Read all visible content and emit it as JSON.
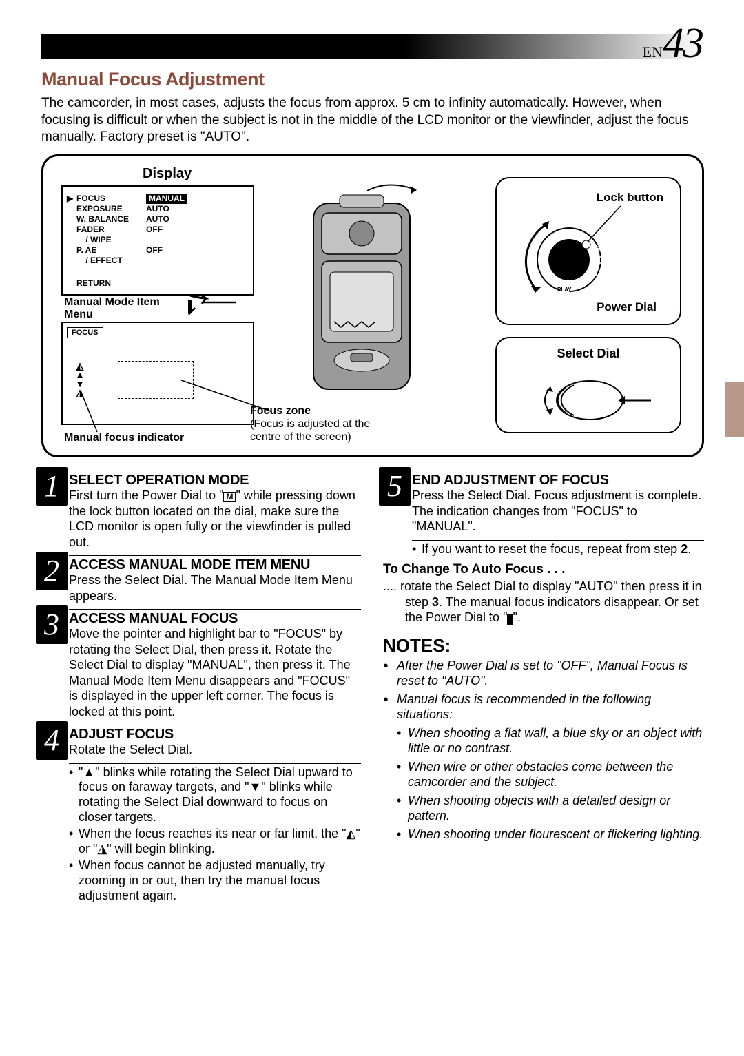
{
  "page": {
    "prefix": "EN",
    "number": "43"
  },
  "title": "Manual Focus Adjustment",
  "intro": "The camcorder, in most cases, adjusts the focus from approx. 5 cm to infinity automatically. However, when focusing is difficult or when the subject is not in the middle of the LCD monitor or the viewfinder, adjust the focus manually. Factory preset is \"AUTO\".",
  "diagram": {
    "display_label": "Display",
    "menu": {
      "items": [
        {
          "label": "FOCUS",
          "value": "MANUAL",
          "pointer": true,
          "highlight": true
        },
        {
          "label": "EXPOSURE",
          "value": "AUTO"
        },
        {
          "label": "W. BALANCE",
          "value": "AUTO"
        },
        {
          "label": "FADER\n    / WIPE",
          "value": "OFF"
        },
        {
          "label": "P. AE\n    / EFFECT",
          "value": "OFF"
        }
      ],
      "return": "RETURN"
    },
    "item_menu_label": "Manual Mode Item\nMenu",
    "focus_screen_label": "FOCUS",
    "indicator_symbols": [
      "◭",
      "▲",
      "▼",
      "◮"
    ],
    "manual_focus_indicator": "Manual focus indicator",
    "focus_zone_title": "Focus zone",
    "focus_zone_text": "(Focus is adjusted at the\ncentre of the screen)",
    "lock_button": "Lock button",
    "power_dial": "Power Dial",
    "select_dial": "Select Dial"
  },
  "steps_left": [
    {
      "num": "1",
      "title": "SELECT OPERATION MODE",
      "body": "First turn the Power Dial to \"M\" while pressing down the lock button located on the dial, make sure the LCD monitor is open fully or the viewfinder is pulled out."
    },
    {
      "num": "2",
      "title": "ACCESS MANUAL MODE ITEM MENU",
      "body": "Press the Select Dial. The Manual Mode Item Menu appears."
    },
    {
      "num": "3",
      "title": "ACCESS MANUAL FOCUS",
      "body": "Move the pointer and highlight bar to \"FOCUS\" by rotating the Select Dial, then press it. Rotate the Select Dial to display \"MANUAL\", then press it. The Manual Mode Item Menu disappears and \"FOCUS\" is displayed in the upper left corner. The focus is locked at this point."
    },
    {
      "num": "4",
      "title": "ADJUST FOCUS",
      "body": "Rotate the Select Dial.",
      "bullets": [
        "\"▲\" blinks while rotating the Select Dial upward to focus on faraway targets, and \"▼\" blinks while rotating the Select Dial downward to focus on closer targets.",
        "When the focus reaches its near or far limit, the \"◭\" or \"◮\" will begin blinking.",
        "When focus cannot be adjusted manually, try zooming in or out, then try the manual focus adjustment again."
      ]
    }
  ],
  "steps_right": [
    {
      "num": "5",
      "title": "END ADJUSTMENT OF FOCUS",
      "body": "Press the Select Dial. Focus adjustment is complete. The indication changes from \"FOCUS\" to \"MANUAL\".",
      "bullets": [
        "If you want to reset the focus, repeat from step 2."
      ]
    }
  ],
  "change_auto": {
    "heading": "To Change To Auto Focus . . .",
    "body": ".... rotate the Select Dial to display \"AUTO\" then press it in step 3. The manual focus indicators disappear. Or set the Power Dial to \"A\"."
  },
  "notes": {
    "heading": "NOTES:",
    "items": [
      "After the Power Dial is set to \"OFF\", Manual Focus is reset to \"AUTO\".",
      "Manual focus is recommended in the following situations:"
    ],
    "sub_items": [
      "When shooting a flat wall, a blue sky or an object with little or no contrast.",
      "When wire or other obstacles come between the camcorder and the subject.",
      "When shooting objects with a detailed design or pattern.",
      "When shooting under flourescent or flickering lighting."
    ]
  },
  "colors": {
    "accent": "#8c4a3a",
    "tab": "#b89888",
    "text": "#000000",
    "bg": "#ffffff"
  }
}
